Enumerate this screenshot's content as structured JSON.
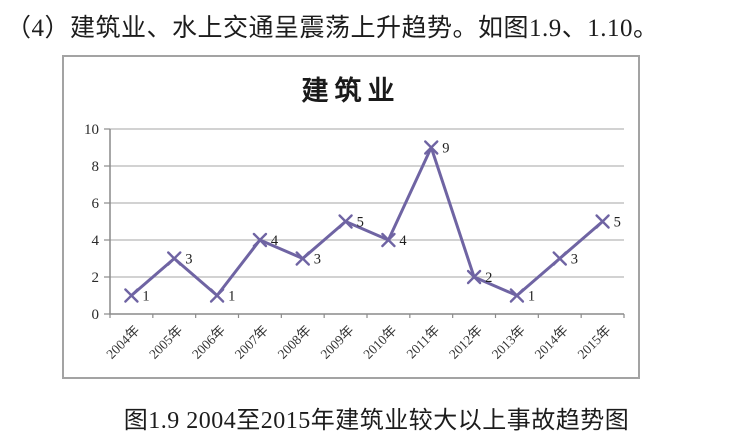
{
  "page": {
    "heading": "（4）建筑业、水上交通呈震荡上升趋势。如图1.9、1.10。",
    "caption": "图1.9 2004至2015年建筑业较大以上事故趋势图"
  },
  "chart_data": {
    "type": "line",
    "title": "建筑业",
    "categories": [
      "2004年",
      "2005年",
      "2006年",
      "2007年",
      "2008年",
      "2009年",
      "2010年",
      "2011年",
      "2012年",
      "2013年",
      "2014年",
      "2015年"
    ],
    "values": [
      1,
      3,
      1,
      4,
      3,
      5,
      4,
      9,
      2,
      1,
      3,
      5
    ],
    "xlabel": "",
    "ylabel": "",
    "ylim": [
      0,
      10
    ],
    "yticks": [
      0,
      2,
      4,
      6,
      8,
      10
    ],
    "grid": true,
    "legend": false,
    "marker": "x",
    "data_labels": true,
    "line_color": "#6F64A3",
    "grid_color": "#b8b8b8",
    "axis_color": "#8a8a8a"
  }
}
